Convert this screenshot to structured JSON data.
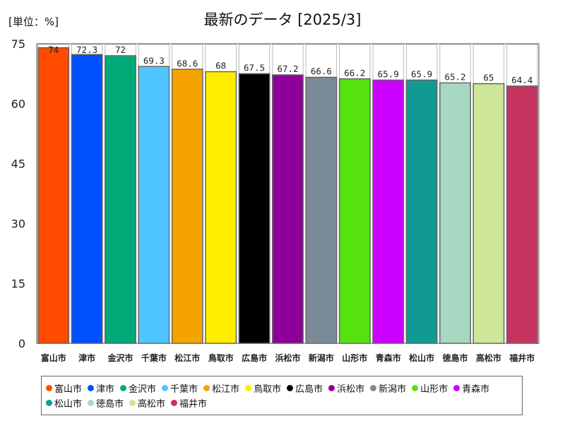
{
  "header": {
    "unit_label": "[単位：%]",
    "title": "最新のデータ [2025/3]"
  },
  "chart_data": {
    "type": "bar",
    "title": "最新のデータ [2025/3]",
    "unit": "[単位：%]",
    "categories": [
      "富山市",
      "津市",
      "金沢市",
      "千葉市",
      "松江市",
      "鳥取市",
      "広島市",
      "浜松市",
      "新潟市",
      "山形市",
      "青森市",
      "松山市",
      "徳島市",
      "高松市",
      "福井市"
    ],
    "values": [
      74,
      72.3,
      72,
      69.3,
      68.6,
      68,
      67.5,
      67.2,
      66.6,
      66.2,
      65.9,
      65.9,
      65.2,
      65,
      64.4
    ],
    "value_labels": [
      "74",
      "72.3",
      "72",
      "69.3",
      "68.6",
      "68",
      "67.5",
      "67.2",
      "66.6",
      "66.2",
      "65.9",
      "65.9",
      "65.2",
      "65",
      "64.4"
    ],
    "colors": [
      "#ff4a00",
      "#0050ff",
      "#00aa77",
      "#4fc6ff",
      "#f5a300",
      "#ffee00",
      "#000000",
      "#8e0099",
      "#7a8a99",
      "#55e20f",
      "#cc00ff",
      "#119a92",
      "#a6d8c2",
      "#cde699",
      "#c5345e"
    ],
    "ylim": [
      0,
      75
    ],
    "yticks": [
      0,
      15,
      30,
      45,
      60,
      75
    ],
    "grid": false,
    "legend_position": "bottom"
  }
}
